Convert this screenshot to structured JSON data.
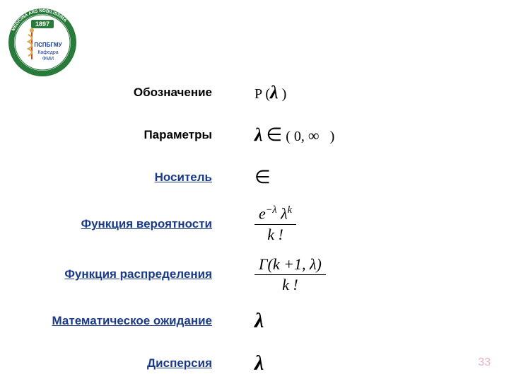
{
  "logo": {
    "outer_ring_color": "#2a7a3c",
    "inner_bg": "#ffffff",
    "ring_text_top": "MEDICINA ARS NOBILISSIMA",
    "year": "1897",
    "lines": [
      "ПСПБГМУ",
      "Кафедра",
      "ФМИ"
    ]
  },
  "rows": [
    {
      "label": "Обозначение",
      "link": false,
      "value_type": "notation"
    },
    {
      "label": "Параметры",
      "link": false,
      "value_type": "params"
    },
    {
      "label": "Носитель",
      "link": true,
      "value_type": "support"
    },
    {
      "label": "Функция вероятности",
      "link": true,
      "value_type": "pmf"
    },
    {
      "label": "Функция распределения",
      "link": true,
      "value_type": "cdf"
    },
    {
      "label": "Математическое ожидание",
      "link": true,
      "value_type": "mean"
    },
    {
      "label": "Дисперсия",
      "link": true,
      "value_type": "var"
    }
  ],
  "math": {
    "notation_prefix": "P (",
    "notation_suffix": " )",
    "params_open": "( 0,",
    "params_inf": "∞",
    "params_close": ")",
    "element_of": "∈",
    "lambda": "λ",
    "pmf_num_html": "e<span class='sup'>&minus;&lambda;</span>&nbsp;&lambda;<span class='sup'>k</span>",
    "pmf_den_html": "k&nbsp;!",
    "cdf_num_html": "&Gamma;(k&nbsp;+1,&nbsp;&lambda;)",
    "cdf_den_html": "k&nbsp;!"
  },
  "page_number": "33",
  "colors": {
    "link": "#1a3a8a",
    "text": "#000000",
    "page_num": "#e9b0c9"
  }
}
